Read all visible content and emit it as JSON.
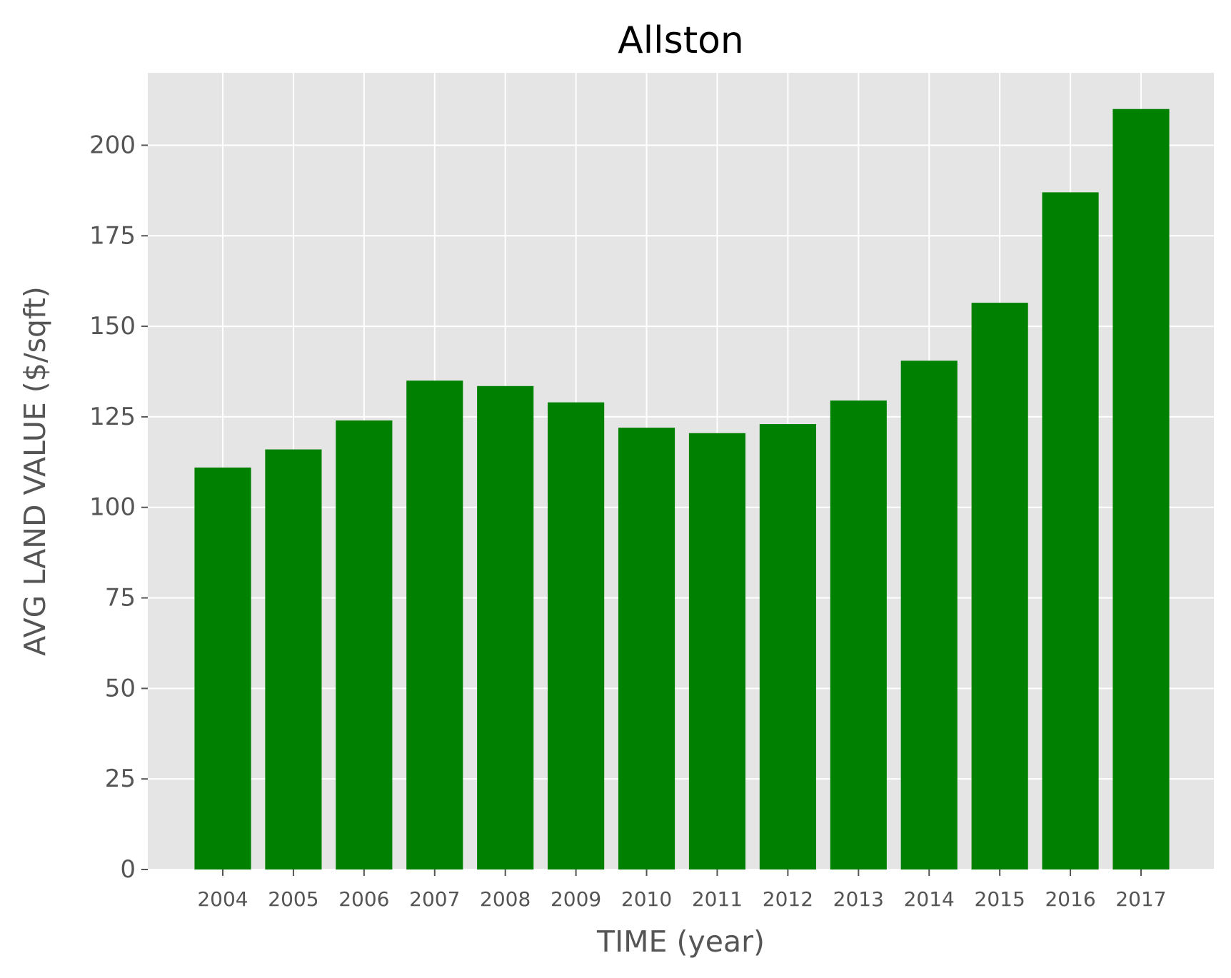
{
  "chart_data": {
    "type": "bar",
    "title": "Allston",
    "xlabel": "TIME (year)",
    "ylabel": "AVG LAND VALUE ($/sqft)",
    "categories": [
      "2004",
      "2005",
      "2006",
      "2007",
      "2008",
      "2009",
      "2010",
      "2011",
      "2012",
      "2013",
      "2014",
      "2015",
      "2016",
      "2017"
    ],
    "values": [
      111,
      116,
      124,
      135,
      133.5,
      129,
      122,
      120.5,
      123,
      129.5,
      140.5,
      156.5,
      187,
      210
    ],
    "ylim": [
      0,
      220
    ],
    "yticks": [
      0,
      25,
      50,
      75,
      100,
      125,
      150,
      175,
      200
    ],
    "grid": true,
    "colors": {
      "bar": "#008000",
      "plot_background": "#e5e5e5",
      "grid": "#ffffff",
      "tick_text": "#555555",
      "title_text": "#000000"
    }
  }
}
